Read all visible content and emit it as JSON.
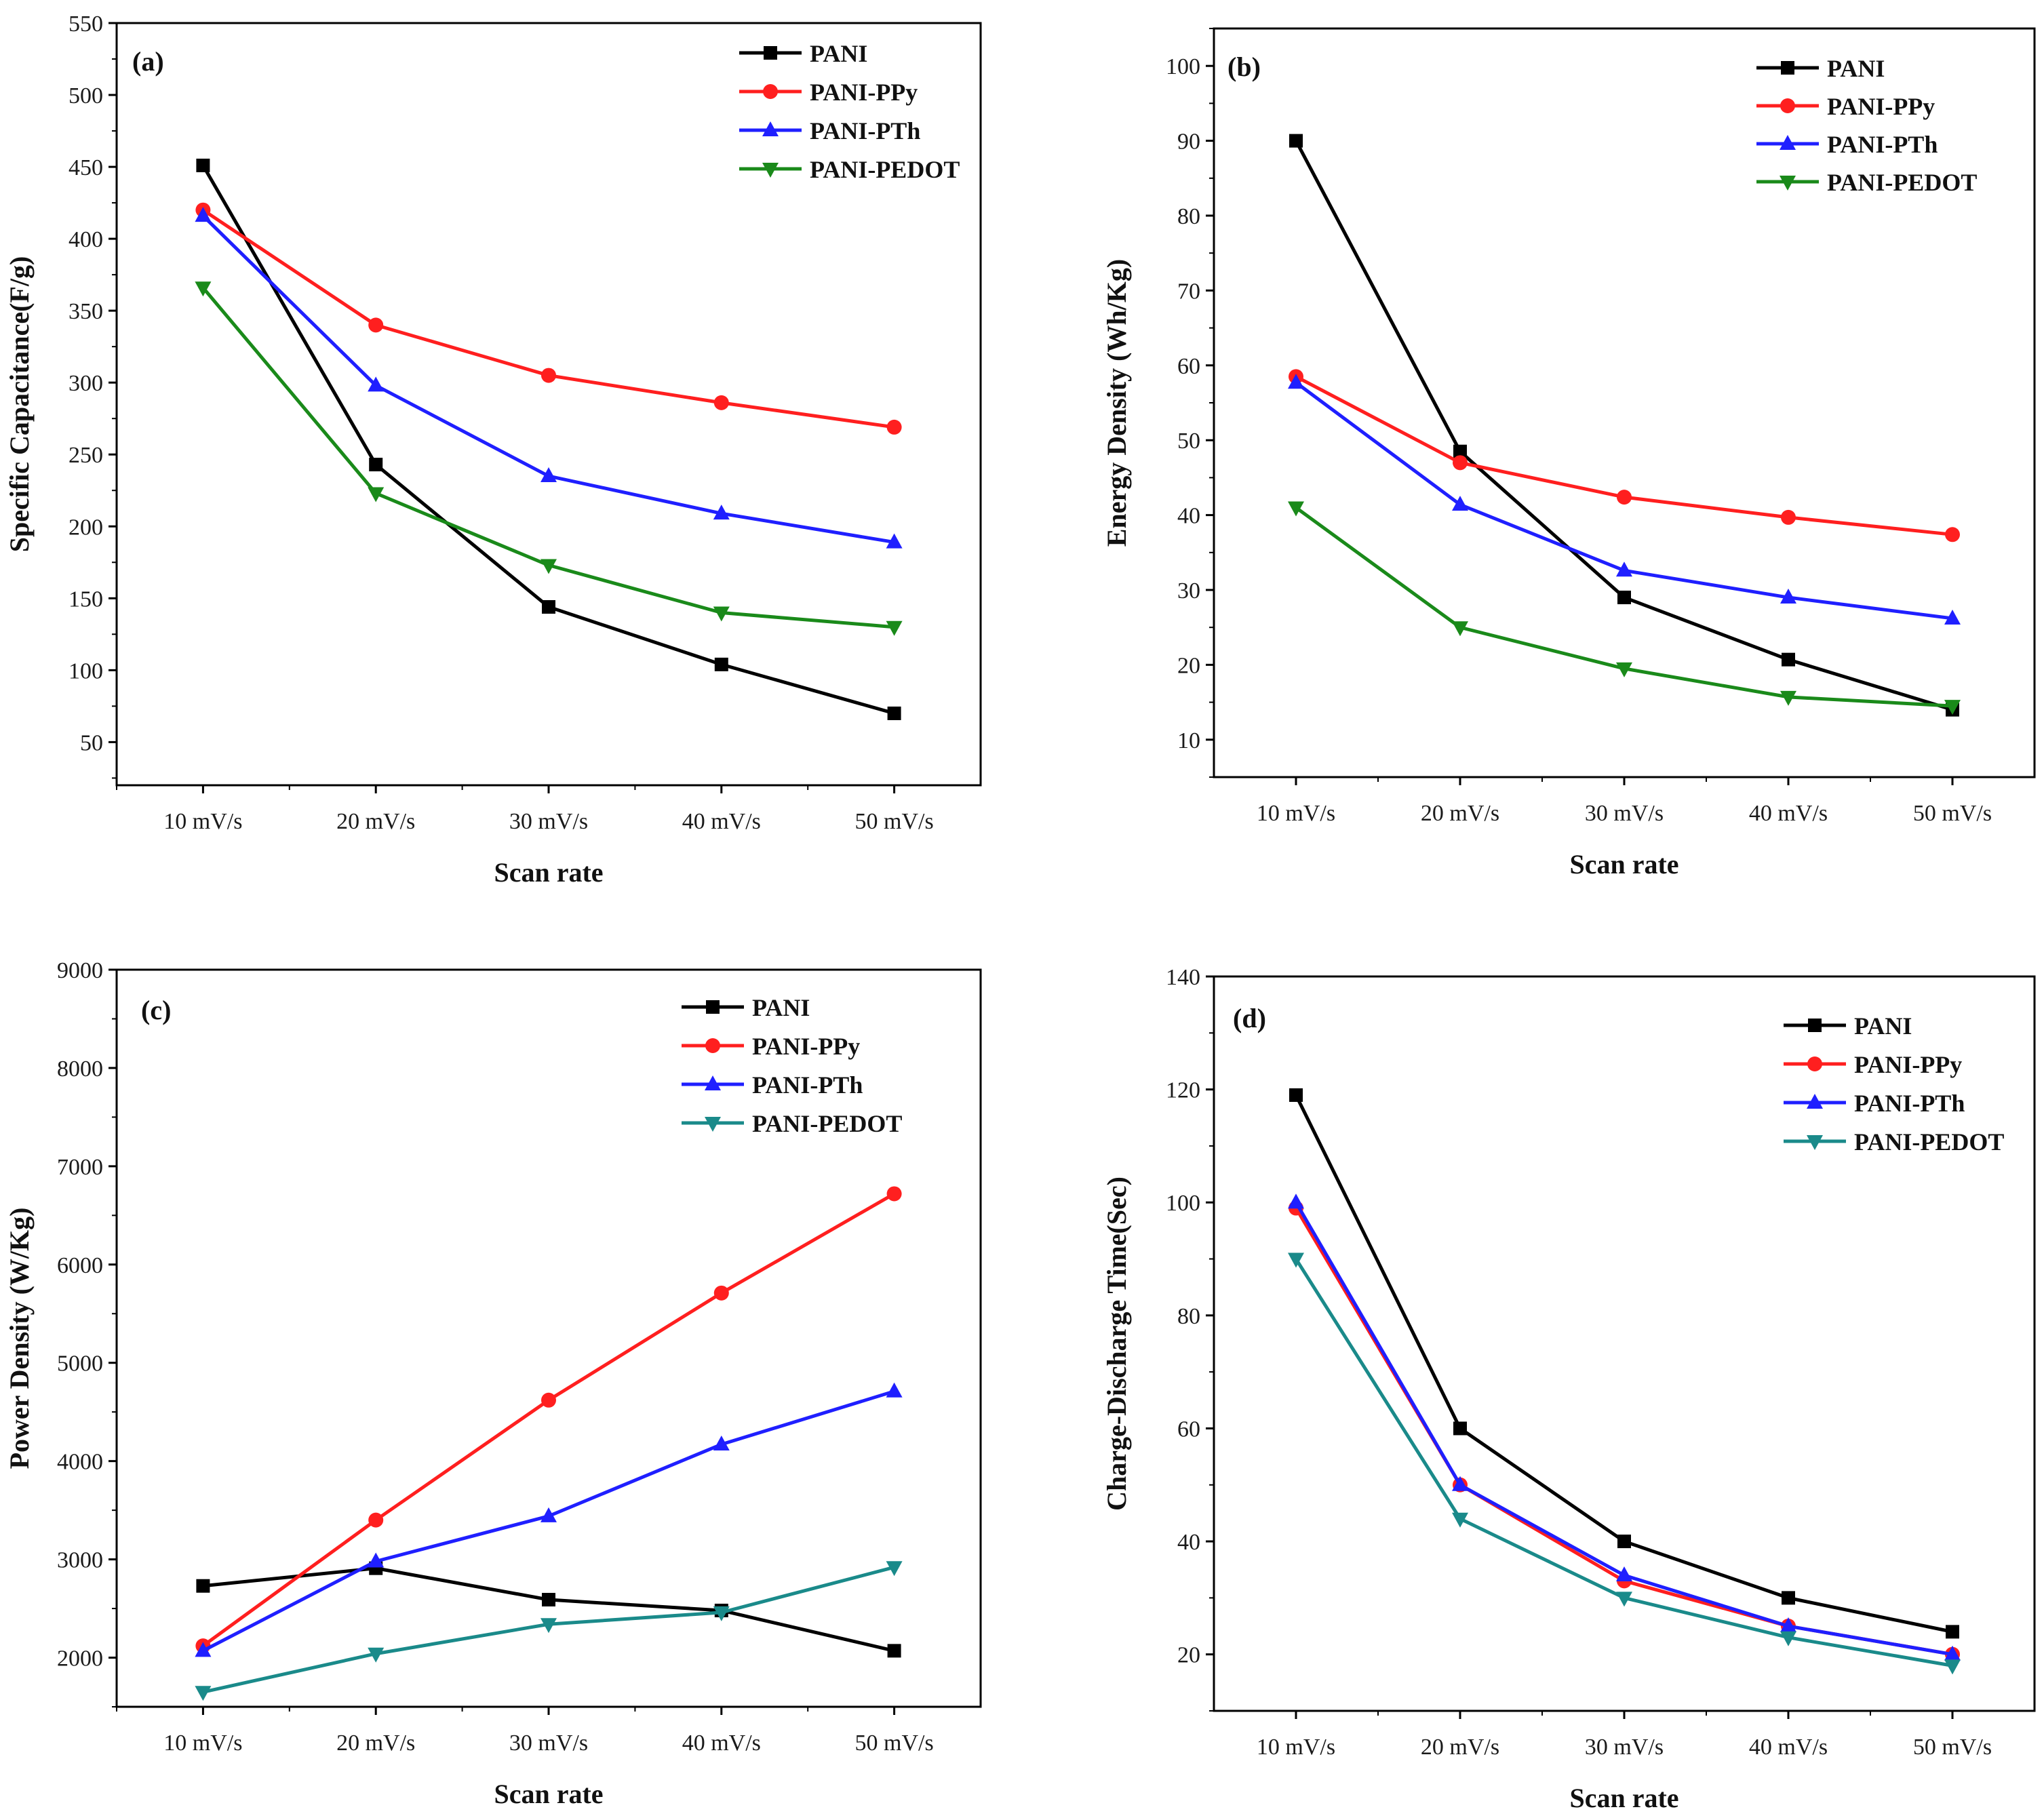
{
  "chart_data": [
    {
      "type": "line",
      "panel_label": "(a)",
      "categories": [
        "10 mV/s",
        "20 mV/s",
        "30 mV/s",
        "40 mV/s",
        "50 mV/s"
      ],
      "xlabel": "Scan rate",
      "ylabel": "Specific Capacitance(F/g)",
      "ylim": [
        20,
        550
      ],
      "yticks": [
        50,
        100,
        150,
        200,
        250,
        300,
        350,
        400,
        450,
        500,
        550
      ],
      "legend_position": "top-right",
      "series": [
        {
          "name": "PANI",
          "color": "#000000",
          "marker": "square",
          "values": [
            451,
            243,
            144,
            104,
            70
          ]
        },
        {
          "name": "PANI-PPy",
          "color": "#ff1f1f",
          "marker": "circle",
          "values": [
            420,
            340,
            305,
            286,
            269
          ]
        },
        {
          "name": "PANI-PTh",
          "color": "#1f1fff",
          "marker": "triangle-up",
          "values": [
            416,
            298,
            235,
            209,
            189
          ]
        },
        {
          "name": "PANI-PEDOT",
          "color": "#1a8a1a",
          "marker": "triangle-down",
          "values": [
            366,
            223,
            173,
            140,
            130
          ]
        }
      ]
    },
    {
      "type": "line",
      "panel_label": "(b)",
      "categories": [
        "10 mV/s",
        "20 mV/s",
        "30 mV/s",
        "40 mV/s",
        "50 mV/s"
      ],
      "xlabel": "Scan rate",
      "ylabel": "Energy Density (Wh/Kg)",
      "ylim": [
        5,
        105
      ],
      "yticks": [
        10,
        20,
        30,
        40,
        50,
        60,
        70,
        80,
        90,
        100
      ],
      "legend_position": "top-right",
      "series": [
        {
          "name": "PANI",
          "color": "#000000",
          "marker": "square",
          "values": [
            90,
            48.5,
            29,
            20.7,
            14
          ]
        },
        {
          "name": "PANI-PPy",
          "color": "#ff1f1f",
          "marker": "circle",
          "values": [
            58.5,
            47,
            42.4,
            39.7,
            37.4
          ]
        },
        {
          "name": "PANI-PTh",
          "color": "#1f1fff",
          "marker": "triangle-up",
          "values": [
            57.7,
            41.4,
            32.6,
            29,
            26.2
          ]
        },
        {
          "name": "PANI-PEDOT",
          "color": "#1a8a1a",
          "marker": "triangle-down",
          "values": [
            41,
            25,
            19.5,
            15.7,
            14.5
          ]
        }
      ]
    },
    {
      "type": "line",
      "panel_label": "(c)",
      "categories": [
        "10 mV/s",
        "20 mV/s",
        "30 mV/s",
        "40 mV/s",
        "50 mV/s"
      ],
      "xlabel": "Scan rate",
      "ylabel": "Power Density (W/Kg)",
      "ylim": [
        1500,
        9000
      ],
      "yticks": [
        2000,
        3000,
        4000,
        5000,
        6000,
        7000,
        8000,
        9000
      ],
      "legend_position": "top-right",
      "series": [
        {
          "name": "PANI",
          "color": "#000000",
          "marker": "square",
          "values": [
            2730,
            2910,
            2590,
            2480,
            2070
          ]
        },
        {
          "name": "PANI-PPy",
          "color": "#ff1f1f",
          "marker": "circle",
          "values": [
            2120,
            3400,
            4620,
            5710,
            6720
          ]
        },
        {
          "name": "PANI-PTh",
          "color": "#1f1fff",
          "marker": "triangle-up",
          "values": [
            2070,
            2980,
            3440,
            4170,
            4710
          ]
        },
        {
          "name": "PANI-PEDOT",
          "color": "#1a8a8a",
          "marker": "triangle-down",
          "values": [
            1650,
            2040,
            2340,
            2460,
            2920
          ]
        }
      ]
    },
    {
      "type": "line",
      "panel_label": "(d)",
      "categories": [
        "10 mV/s",
        "20 mV/s",
        "30 mV/s",
        "40 mV/s",
        "50 mV/s"
      ],
      "xlabel": "Scan rate",
      "ylabel": "Charge-Discharge Time(Sec)",
      "ylim": [
        10,
        140
      ],
      "yticks": [
        20,
        40,
        60,
        80,
        100,
        120,
        140
      ],
      "legend_position": "top-right",
      "series": [
        {
          "name": "PANI",
          "color": "#000000",
          "marker": "square",
          "values": [
            119,
            60,
            40,
            30,
            24
          ]
        },
        {
          "name": "PANI-PPy",
          "color": "#ff1f1f",
          "marker": "circle",
          "values": [
            99,
            50,
            33,
            25,
            20
          ]
        },
        {
          "name": "PANI-PTh",
          "color": "#1f1fff",
          "marker": "triangle-up",
          "values": [
            100,
            50,
            34,
            25,
            20
          ]
        },
        {
          "name": "PANI-PEDOT",
          "color": "#1a8a8a",
          "marker": "triangle-down",
          "values": [
            90,
            44,
            30,
            23,
            18
          ]
        }
      ]
    }
  ]
}
